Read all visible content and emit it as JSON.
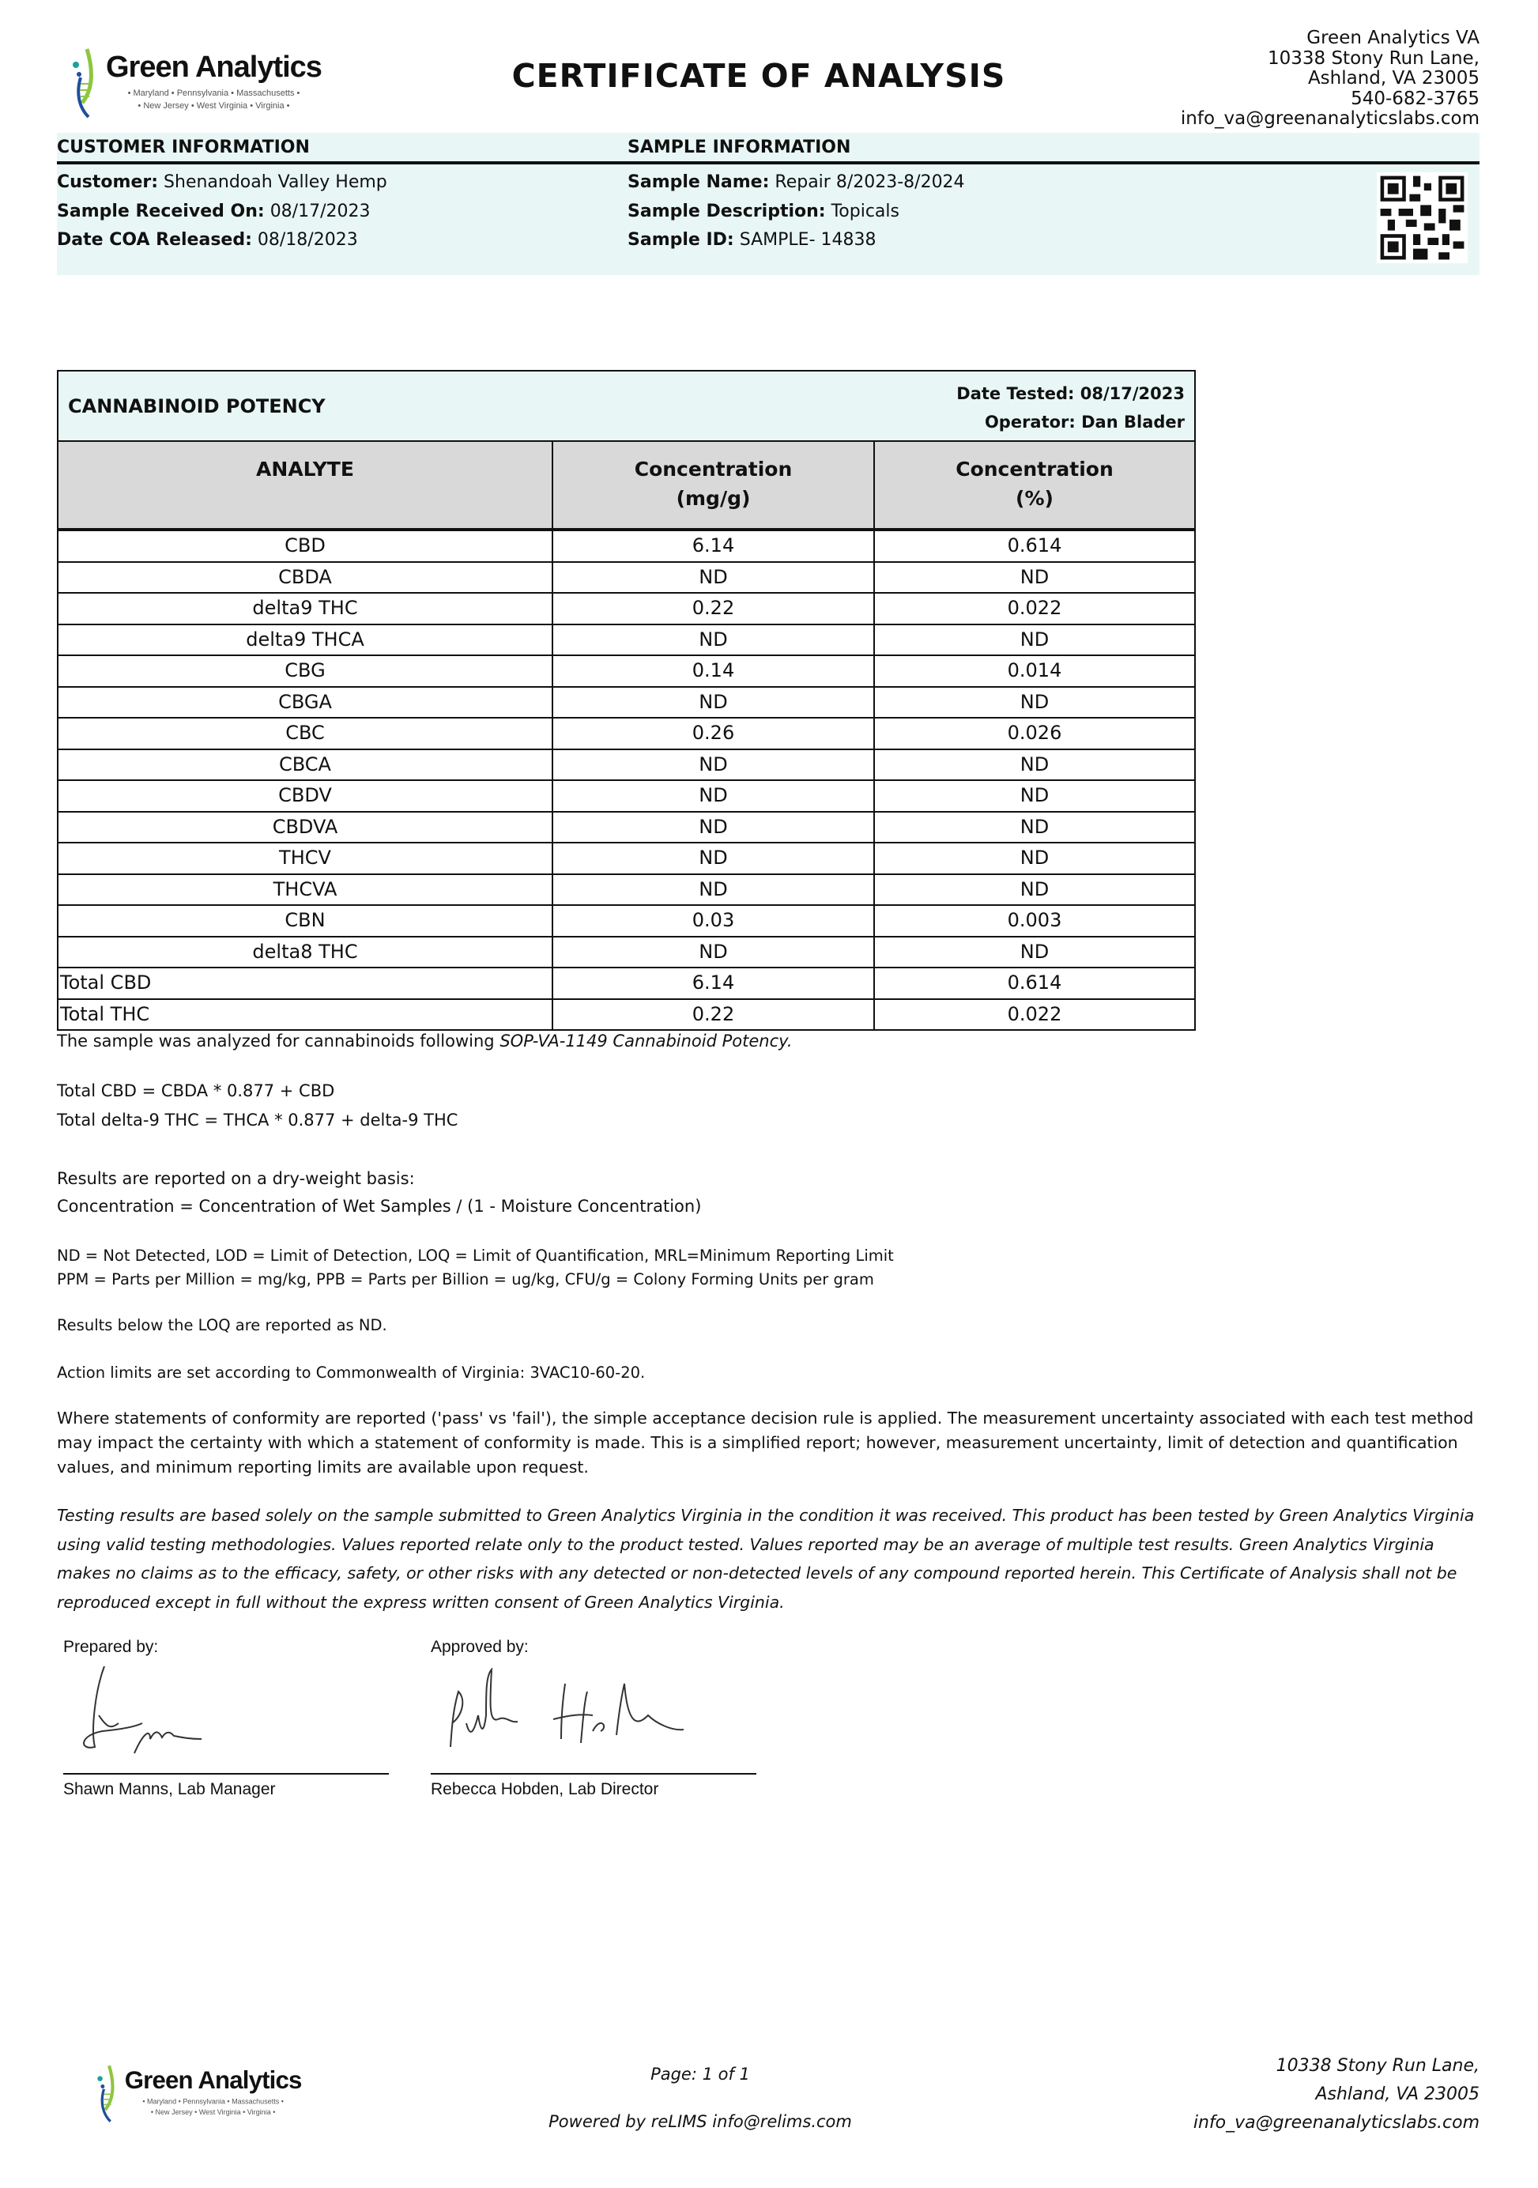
{
  "header": {
    "logo": {
      "name": "Green Analytics",
      "states_line1": "• Maryland • Pennsylvania • Massachusetts •",
      "states_line2": "• New Jersey • West Virginia • Virginia •"
    },
    "title": "CERTIFICATE OF ANALYSIS",
    "address": [
      "Green Analytics VA",
      "10338 Stony Run Lane,",
      "Ashland, VA 23005",
      "540-682-3765",
      "info_va@greenanalyticslabs.com"
    ]
  },
  "customer_info": {
    "heading": "CUSTOMER INFORMATION",
    "fields": [
      {
        "label": "Customer:",
        "value": "Shenandoah Valley Hemp"
      },
      {
        "label": "Sample Received On:",
        "value": "08/17/2023"
      },
      {
        "label": "Date COA Released:",
        "value": "08/18/2023"
      }
    ]
  },
  "sample_info": {
    "heading": "SAMPLE INFORMATION",
    "fields": [
      {
        "label": "Sample Name:",
        "value": "Repair 8/2023-8/2024"
      },
      {
        "label": "Sample Description:",
        "value": "Topicals"
      },
      {
        "label": "Sample ID:",
        "value": "SAMPLE- 14838"
      }
    ]
  },
  "potency": {
    "title": "CANNABINOID POTENCY",
    "date_tested": "Date Tested: 08/17/2023",
    "operator": "Operator: Dan Blader",
    "columns": [
      {
        "line1": "ANALYTE",
        "line2": ""
      },
      {
        "line1": "Concentration",
        "line2": "(mg/g)"
      },
      {
        "line1": "Concentration",
        "line2": "(%)"
      }
    ],
    "rows": [
      [
        "CBD",
        "6.14",
        "0.614"
      ],
      [
        "CBDA",
        "ND",
        "ND"
      ],
      [
        "delta9 THC",
        "0.22",
        "0.022"
      ],
      [
        "delta9 THCA",
        "ND",
        "ND"
      ],
      [
        "CBG",
        "0.14",
        "0.014"
      ],
      [
        "CBGA",
        "ND",
        "ND"
      ],
      [
        "CBC",
        "0.26",
        "0.026"
      ],
      [
        "CBCA",
        "ND",
        "ND"
      ],
      [
        "CBDV",
        "ND",
        "ND"
      ],
      [
        "CBDVA",
        "ND",
        "ND"
      ],
      [
        "THCV",
        "ND",
        "ND"
      ],
      [
        "THCVA",
        "ND",
        "ND"
      ],
      [
        "CBN",
        "0.03",
        "0.003"
      ],
      [
        "delta8 THC",
        "ND",
        "ND"
      ]
    ],
    "totals": [
      [
        "Total CBD",
        "6.14",
        "0.614"
      ],
      [
        "Total THC",
        "0.22",
        "0.022"
      ]
    ]
  },
  "notes": {
    "method_prefix": "The sample was analyzed for cannabinoids following ",
    "method_sop": "SOP-VA-1149 Cannabinoid Potency.",
    "formula1": "Total CBD = CBDA * 0.877 + CBD",
    "formula2": "Total delta-9 THC = THCA * 0.877 + delta-9 THC",
    "dry1": "Results are reported on a dry-weight basis:",
    "dry2": "Concentration = Concentration of Wet Samples / (1 - Moisture Concentration)",
    "abbr1": "ND = Not Detected, LOD = Limit of Detection, LOQ = Limit of Quantification, MRL=Minimum Reporting Limit",
    "abbr2": "PPM = Parts per Million = mg/kg, PPB = Parts per Billion = ug/kg, CFU/g = Colony Forming Units per gram",
    "loq": "Results below the LOQ are reported as ND.",
    "action": "Action limits are set according to Commonwealth of Virginia: 3VAC10-60-20.",
    "conformity": "Where statements of conformity are reported ('pass' vs 'fail'), the simple acceptance decision rule is applied. The measurement uncertainty associated with each test method may impact the certainty with which a statement of conformity is made. This is a simplified report; however, measurement uncertainty, limit of detection and quantification values, and minimum reporting limits are available upon request.",
    "disclaimer": "Testing results are based solely on the sample submitted to Green Analytics Virginia in the condition it was received. This product has been tested by Green Analytics Virginia using valid testing methodologies. Values reported relate only to the product tested. Values reported may be an average of multiple test results. Green Analytics Virginia makes no claims as to the efficacy, safety, or other risks with any detected or non-detected levels of any compound reported herein. This Certificate of Analysis shall not be reproduced except in full without the express written consent of Green Analytics Virginia."
  },
  "signatures": {
    "prepared_label": "Prepared by:",
    "prepared_name": "Shawn Manns, Lab Manager",
    "approved_label": "Approved by:",
    "approved_name": "Rebecca Hobden, Lab Director"
  },
  "footer": {
    "page": "Page: 1 of 1",
    "powered": "Powered by reLIMS info@relims.com",
    "address": [
      "10338 Stony Run Lane,",
      "Ashland, VA 23005",
      "info_va@greenanalyticslabs.com"
    ]
  },
  "colors": {
    "band": "#e8f7f5",
    "table_header": "#d9d9d9",
    "logo_green": "#8dc63f",
    "logo_blue": "#1f4e9c",
    "logo_teal": "#1aa39a"
  }
}
